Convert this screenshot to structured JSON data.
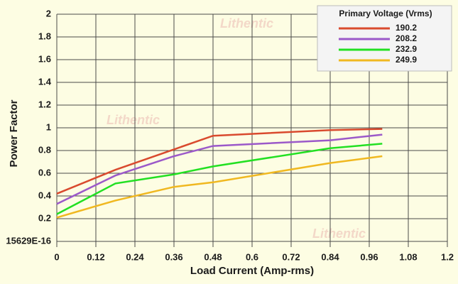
{
  "chart_data": {
    "type": "line",
    "x_label": "Load Current (Amp-rms)",
    "y_label": "Power Factor",
    "watermark": "Lithentic",
    "legend_title": "Primary Voltage (Vrms)",
    "legend": "top-right",
    "x": [
      0,
      0.18,
      0.36,
      0.48,
      0.84,
      1.0
    ],
    "series": [
      {
        "name": "190.2",
        "color": "#d94a2e",
        "values": [
          0.42,
          0.63,
          0.81,
          0.93,
          0.98,
          0.99
        ]
      },
      {
        "name": "208.2",
        "color": "#9b59c9",
        "values": [
          0.33,
          0.58,
          0.75,
          0.84,
          0.89,
          0.94
        ]
      },
      {
        "name": "232.9",
        "color": "#22e022",
        "values": [
          0.24,
          0.51,
          0.59,
          0.66,
          0.82,
          0.86
        ]
      },
      {
        "name": "249.9",
        "color": "#f0b820",
        "values": [
          0.21,
          0.36,
          0.48,
          0.52,
          0.69,
          0.75
        ]
      }
    ],
    "xlim": [
      0,
      1.2
    ],
    "xticks": [
      0,
      0.12,
      0.24,
      0.36,
      0.48,
      0.6,
      0.72,
      0.84,
      0.96,
      1.08,
      1.2
    ],
    "ylim": [
      0,
      2
    ],
    "yticks": [
      {
        "value": 0,
        "label": "15629E-16"
      },
      0.2,
      0.4,
      0.6,
      0.8,
      1,
      1.2,
      1.4,
      1.6,
      1.8,
      2
    ],
    "grid": true
  }
}
